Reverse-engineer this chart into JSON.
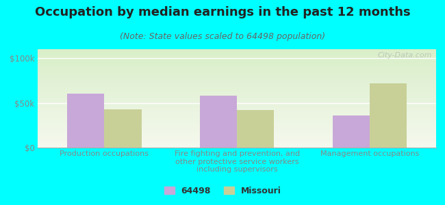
{
  "title": "Occupation by median earnings in the past 12 months",
  "subtitle": "(Note: State values scaled to 64498 population)",
  "categories": [
    "Production occupations",
    "Fire fighting and prevention, and\nother protective service workers\nincluding supervisors",
    "Management occupations"
  ],
  "values_64498": [
    60000,
    58000,
    36000
  ],
  "values_missouri": [
    43000,
    42000,
    72000
  ],
  "bar_color_64498": "#c8a8d8",
  "bar_color_missouri": "#c8d098",
  "background_color": "#00ffff",
  "plot_bg_top": "#f5f8ee",
  "plot_bg_bottom": "#d8eec8",
  "ylim": [
    0,
    110000
  ],
  "yticks": [
    0,
    50000,
    100000
  ],
  "ytick_labels": [
    "$0",
    "$50k",
    "$100k"
  ],
  "legend_label_1": "64498",
  "legend_label_2": "Missouri",
  "watermark": "City-Data.com",
  "title_fontsize": 13,
  "subtitle_fontsize": 9,
  "tick_fontsize": 8.5,
  "legend_fontsize": 9,
  "axis_color": "#888888",
  "title_color": "#222222",
  "subtitle_color": "#666666"
}
